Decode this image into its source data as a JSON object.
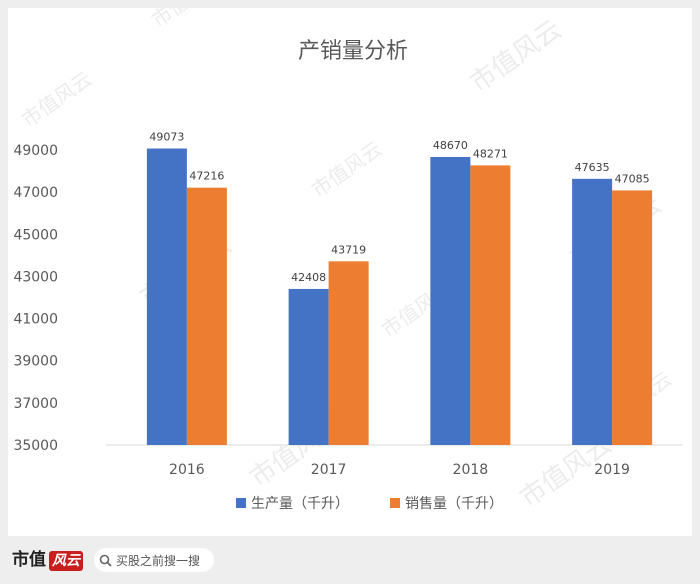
{
  "chart_data": {
    "type": "bar",
    "title": "产销量分析",
    "categories": [
      "2016",
      "2017",
      "2018",
      "2019"
    ],
    "series": [
      {
        "name": "生产量（千升）",
        "values": [
          49073,
          42408,
          48670,
          47635
        ],
        "color": "#4472c4"
      },
      {
        "name": "销售量（千升）",
        "values": [
          47216,
          43719,
          48271,
          47085
        ],
        "color": "#ed7d31"
      }
    ],
    "ylim": [
      35000,
      50000
    ],
    "yticks": [
      35000,
      37000,
      39000,
      41000,
      43000,
      45000,
      47000,
      49000
    ],
    "xlabel": "",
    "ylabel": "",
    "grid": false,
    "legend_position": "bottom"
  },
  "watermark": "市值风云",
  "footer": {
    "brand": "市值",
    "brand_stamp": "风云",
    "search_placeholder": "买股之前搜一搜"
  }
}
